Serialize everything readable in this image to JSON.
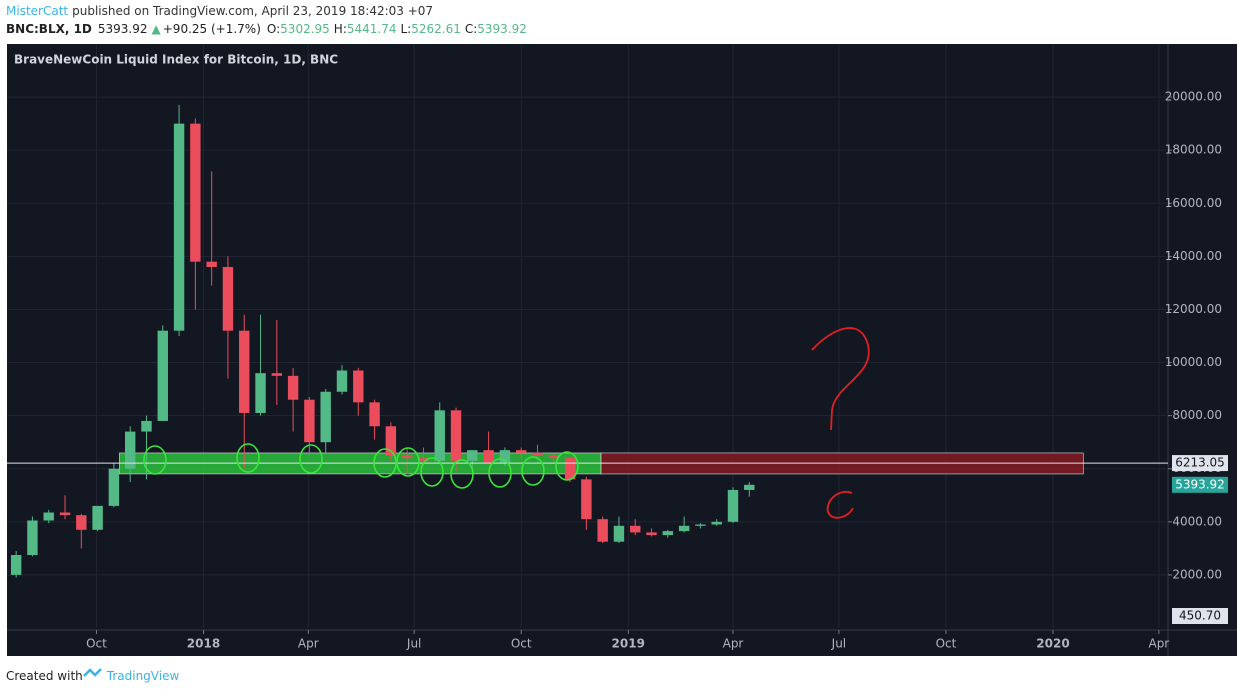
{
  "header": {
    "author": "MisterCatt",
    "published": "published on TradingView.com, April 23, 2019 18:42:03 +07",
    "symbol": "BNC:BLX, 1D",
    "last": 5393.92,
    "change": "+90.25 (+1.7%)",
    "ohlc": [
      {
        "label": "O:",
        "value": 5302.95
      },
      {
        "label": "H:",
        "value": 5441.74
      },
      {
        "label": "L:",
        "value": 5262.61
      },
      {
        "label": "C:",
        "value": 5393.92
      }
    ]
  },
  "chart_data": {
    "type": "candlestick",
    "title": "BraveNewCoin Liquid Index for Bitcoin, 1D, BNC",
    "up_color": "#53b987",
    "down_color": "#eb4d5c",
    "grid": true,
    "open": [
      2000,
      2750,
      4050,
      4350,
      4250,
      3700,
      4600,
      6000,
      7400,
      7800,
      11200,
      19000,
      13800,
      13600,
      11200,
      8100,
      9600,
      9500,
      8600,
      7000,
      8900,
      9700,
      8500,
      7600,
      6500,
      6400,
      6300,
      8200,
      6300,
      6700,
      6200,
      6700,
      6600,
      6500,
      6400,
      5600,
      4100,
      3250,
      3850,
      3600,
      3500,
      3650,
      3850,
      3900,
      4000,
      5200
    ],
    "high": [
      2900,
      4200,
      4450,
      5000,
      4300,
      4600,
      6200,
      7600,
      8000,
      11400,
      19700,
      19200,
      17200,
      14000,
      11800,
      11800,
      11600,
      9800,
      8700,
      9000,
      9900,
      9800,
      8600,
      7750,
      6800,
      6800,
      8500,
      8300,
      6600,
      7400,
      6800,
      6800,
      6900,
      6550,
      6500,
      5700,
      4200,
      4200,
      4100,
      3750,
      3700,
      4200,
      3950,
      4100,
      5300,
      5500
    ],
    "low": [
      1900,
      2700,
      3950,
      4100,
      3000,
      3650,
      4550,
      5500,
      5600,
      7800,
      11000,
      12000,
      12900,
      9400,
      6000,
      8000,
      8400,
      7400,
      6500,
      6600,
      8800,
      8000,
      7100,
      6300,
      5800,
      6100,
      6300,
      5900,
      5900,
      6200,
      6100,
      6400,
      6200,
      6250,
      5500,
      3700,
      3200,
      3200,
      3500,
      3450,
      3400,
      3600,
      3750,
      3850,
      3950,
      4950
    ],
    "close": [
      2750,
      4050,
      4350,
      4250,
      3700,
      4600,
      6000,
      7400,
      7800,
      11200,
      19000,
      13800,
      13600,
      11200,
      8100,
      9600,
      9500,
      8600,
      7000,
      8900,
      9700,
      8500,
      7600,
      6500,
      6400,
      6300,
      8200,
      6300,
      6700,
      6200,
      6700,
      6600,
      6500,
      6400,
      5600,
      4100,
      3250,
      3850,
      3600,
      3500,
      3650,
      3850,
      3900,
      4000,
      5200,
      5393.92
    ],
    "xlim": [
      -0.5,
      70.7
    ],
    "xticks": [
      {
        "value": 4.93,
        "label": "Oct"
      },
      {
        "value": 11.5,
        "label": "2018"
      },
      {
        "value": 17.93,
        "label": "Apr"
      },
      {
        "value": 24.43,
        "label": "Jul"
      },
      {
        "value": 31,
        "label": "Oct"
      },
      {
        "value": 37.57,
        "label": "2019"
      },
      {
        "value": 44,
        "label": "Apr"
      },
      {
        "value": 50.5,
        "label": "Jul"
      },
      {
        "value": 57.07,
        "label": "Oct"
      },
      {
        "value": 63.64,
        "label": "2020"
      },
      {
        "value": 70.14,
        "label": "Apr"
      }
    ],
    "ylim": [
      0,
      22000
    ],
    "yticks": [
      {
        "value": 2000,
        "label": "2000.00"
      },
      {
        "value": 4000,
        "label": "4000.00"
      },
      {
        "value": 6000,
        "label": "6000.00"
      },
      {
        "value": 8000,
        "label": "8000.00"
      },
      {
        "value": 10000,
        "label": "10000.00"
      },
      {
        "value": 12000,
        "label": "12000.00"
      },
      {
        "value": 14000,
        "label": "14000.00"
      },
      {
        "value": 16000,
        "label": "16000.00"
      },
      {
        "value": 18000,
        "label": "18000.00"
      },
      {
        "value": 20000,
        "label": "20000.00"
      }
    ],
    "price_line": 6213.05,
    "volume_ma_last": {
      "value": 450.7,
      "label": "450.70"
    },
    "zones": [
      {
        "x": [
          6.34,
          35.9
        ],
        "y": [
          5804,
          6594
        ],
        "color": "#2ecc40"
      },
      {
        "x": [
          35.9,
          65.5
        ],
        "y": [
          5804,
          6594
        ],
        "color": "#8b1a22"
      }
    ]
  },
  "footer": {
    "created": "Created with",
    "brand": "TradingView"
  }
}
